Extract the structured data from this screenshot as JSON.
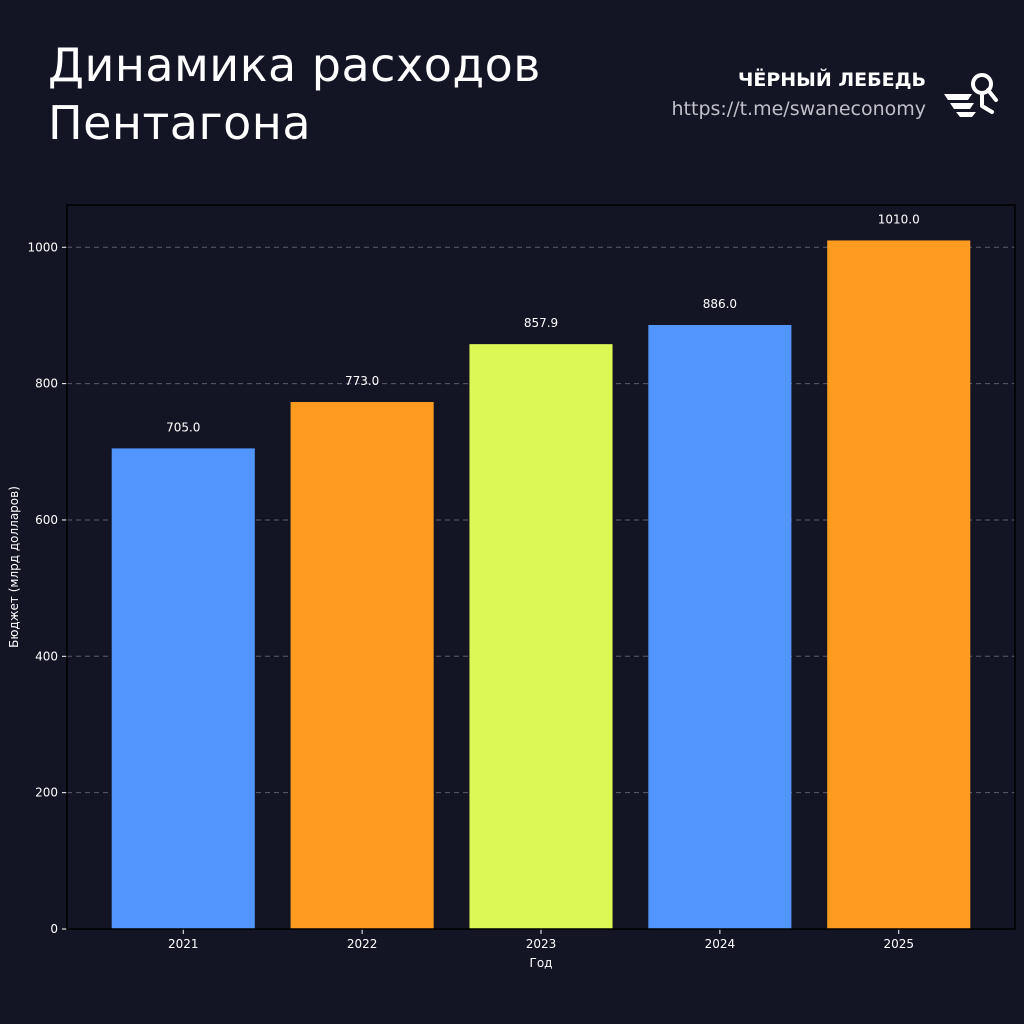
{
  "header": {
    "title_line1": "Динамика расходов",
    "title_line2": "Пентагона",
    "brand_name": "ЧЁРНЫЙ ЛЕБЕДЬ",
    "brand_url": "https://t.me/swaneconomy",
    "brand_logo_icon": "swan-logo-icon"
  },
  "colors": {
    "background": "#131424",
    "blue": "#5295FC",
    "orange": "#FF9B21",
    "lime": "#DCF854",
    "grid": "#5C5E70",
    "text": "#FFFFFF",
    "muted": "#BFC0C8"
  },
  "chart_data": {
    "type": "bar",
    "title": "Динамика расходов Пентагона",
    "xlabel": "Год",
    "ylabel": "Бюджет (млрд долларов)",
    "categories": [
      "2021",
      "2022",
      "2023",
      "2024",
      "2025"
    ],
    "values": [
      705.0,
      773.0,
      857.9,
      886.0,
      1010.0
    ],
    "value_labels": [
      "705.0",
      "773.0",
      "857.9",
      "886.0",
      "1010.0"
    ],
    "bar_colors": [
      "#5295FC",
      "#FF9B21",
      "#DCF854",
      "#5295FC",
      "#FF9B21"
    ],
    "yticks": [
      0,
      200,
      400,
      600,
      800,
      1000
    ],
    "ylim": [
      0,
      1062
    ],
    "grid": true,
    "grid_style": "dashed-horizontal"
  }
}
